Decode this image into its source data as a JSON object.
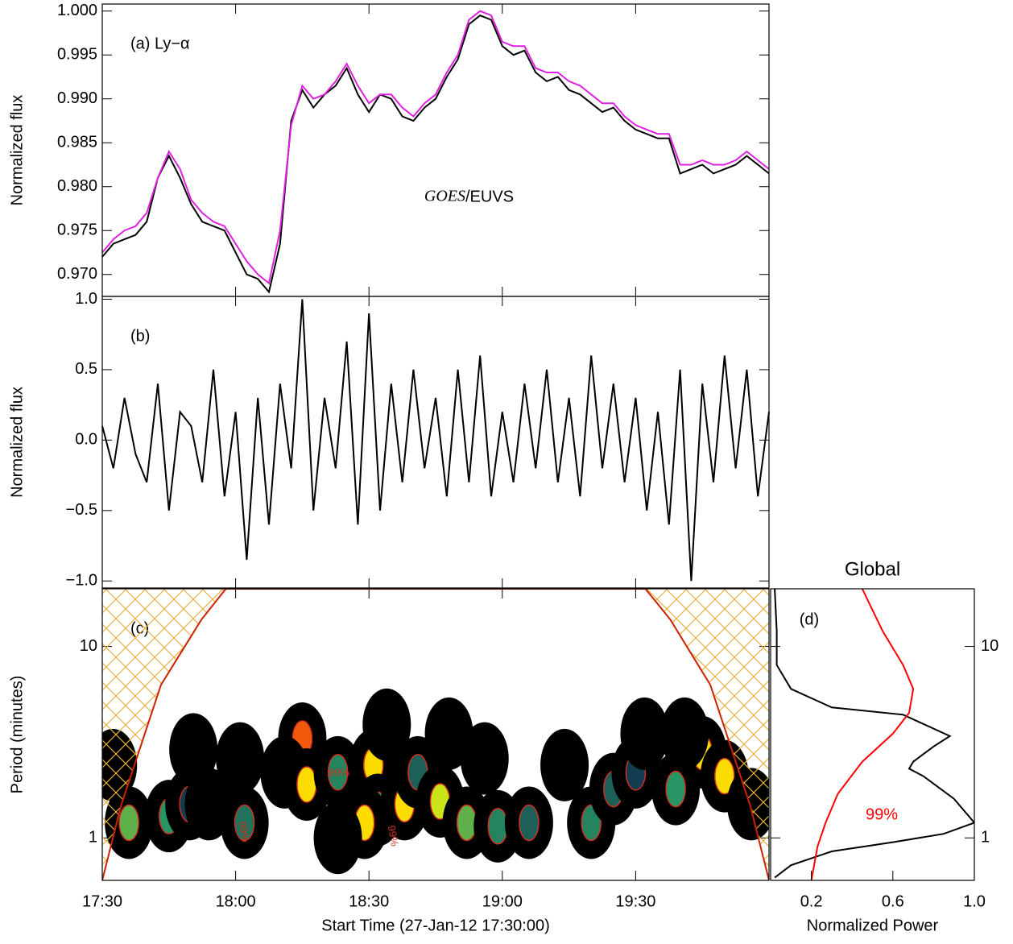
{
  "chart_data": [
    {
      "type": "line",
      "panel_label": "(a) Ly−α",
      "annotation_italic": "GOES",
      "annotation": "/EUVS",
      "y_label": "Normalized flux",
      "x": [
        0,
        2.5,
        5,
        7.5,
        10,
        12.5,
        15,
        17.5,
        20,
        22.5,
        25,
        27.5,
        30,
        32.5,
        35,
        37.5,
        40,
        42.5,
        45,
        47.5,
        50,
        52.5,
        55,
        57.5,
        60,
        62.5,
        65,
        67.5,
        70,
        72.5,
        75,
        77.5,
        80,
        82.5,
        85,
        87.5,
        90,
        92.5,
        95,
        97.5,
        100,
        102.5,
        105,
        107.5,
        110,
        112.5,
        115,
        117.5,
        120,
        122.5,
        125,
        127.5,
        130,
        132.5,
        135,
        137.5,
        140,
        142.5,
        145,
        147.5,
        150
      ],
      "xlim": [
        0,
        150
      ],
      "ylim": [
        0.9675,
        1.0008
      ],
      "yticks": [
        {
          "value": 0.97,
          "label": "0.970"
        },
        {
          "value": 0.975,
          "label": "0.975"
        },
        {
          "value": 0.98,
          "label": "0.980"
        },
        {
          "value": 0.985,
          "label": "0.985"
        },
        {
          "value": 0.99,
          "label": "0.990"
        },
        {
          "value": 0.995,
          "label": "0.995"
        },
        {
          "value": 1.0,
          "label": "1.000"
        }
      ],
      "series": [
        {
          "color": "#000000",
          "values": [
            0.972,
            0.9735,
            0.974,
            0.9745,
            0.976,
            0.981,
            0.9835,
            0.981,
            0.978,
            0.976,
            0.9755,
            0.975,
            0.9725,
            0.97,
            0.9695,
            0.968,
            0.9735,
            0.9875,
            0.991,
            0.989,
            0.9905,
            0.9915,
            0.9935,
            0.9905,
            0.9885,
            0.9905,
            0.99,
            0.988,
            0.9875,
            0.989,
            0.99,
            0.9925,
            0.9945,
            0.9985,
            0.9995,
            0.999,
            0.996,
            0.995,
            0.9955,
            0.993,
            0.992,
            0.9925,
            0.991,
            0.9905,
            0.9895,
            0.9885,
            0.989,
            0.9875,
            0.9865,
            0.986,
            0.9855,
            0.9855,
            0.9815,
            0.982,
            0.9825,
            0.9815,
            0.982,
            0.9825,
            0.9835,
            0.9825,
            0.9815
          ]
        },
        {
          "color": "#e020e0",
          "values": [
            0.9725,
            0.974,
            0.975,
            0.9755,
            0.977,
            0.981,
            0.984,
            0.982,
            0.9785,
            0.977,
            0.976,
            0.9755,
            0.9735,
            0.9715,
            0.97,
            0.969,
            0.975,
            0.987,
            0.9915,
            0.99,
            0.9905,
            0.992,
            0.994,
            0.9915,
            0.9895,
            0.9905,
            0.9905,
            0.989,
            0.988,
            0.9895,
            0.9905,
            0.993,
            0.995,
            0.999,
            1.0,
            0.9995,
            0.9965,
            0.996,
            0.996,
            0.9935,
            0.993,
            0.993,
            0.992,
            0.9915,
            0.9905,
            0.9895,
            0.9895,
            0.988,
            0.987,
            0.9865,
            0.986,
            0.986,
            0.9825,
            0.9825,
            0.983,
            0.9825,
            0.9825,
            0.983,
            0.984,
            0.983,
            0.982
          ]
        }
      ]
    },
    {
      "type": "line",
      "panel_label": "(b)",
      "y_label": "Normalized flux",
      "x": [
        0,
        2.5,
        5,
        7.5,
        10,
        12.5,
        15,
        17.5,
        20,
        22.5,
        25,
        27.5,
        30,
        32.5,
        35,
        37.5,
        40,
        42.5,
        45,
        47.5,
        50,
        52.5,
        55,
        57.5,
        60,
        62.5,
        65,
        67.5,
        70,
        72.5,
        75,
        77.5,
        80,
        82.5,
        85,
        87.5,
        90,
        92.5,
        95,
        97.5,
        100,
        102.5,
        105,
        107.5,
        110,
        112.5,
        115,
        117.5,
        120,
        122.5,
        125,
        127.5,
        130,
        132.5,
        135,
        137.5,
        140,
        142.5,
        145,
        147.5,
        150
      ],
      "xlim": [
        0,
        150
      ],
      "ylim": [
        -1.05,
        1.02
      ],
      "yticks": [
        {
          "value": -1.0,
          "label": "−1.0"
        },
        {
          "value": -0.5,
          "label": "−0.5"
        },
        {
          "value": 0,
          "label": "0.0"
        },
        {
          "value": 0.5,
          "label": "0.5"
        },
        {
          "value": 1.0,
          "label": "1.0"
        }
      ],
      "series": [
        {
          "color": "#000000",
          "values": [
            0.1,
            -0.2,
            0.3,
            -0.1,
            -0.3,
            0.4,
            -0.5,
            0.2,
            0.1,
            -0.3,
            0.5,
            -0.4,
            0.2,
            -0.85,
            0.3,
            -0.6,
            0.4,
            -0.2,
            1.0,
            -0.5,
            0.3,
            -0.2,
            0.7,
            -0.6,
            0.9,
            -0.5,
            0.4,
            -0.3,
            0.5,
            -0.2,
            0.3,
            -0.4,
            0.5,
            -0.3,
            0.6,
            -0.4,
            0.2,
            -0.3,
            0.4,
            -0.2,
            0.5,
            -0.3,
            0.3,
            -0.4,
            0.6,
            -0.2,
            0.4,
            -0.3,
            0.3,
            -0.5,
            0.2,
            -0.6,
            0.5,
            -1.0,
            0.4,
            -0.3,
            0.6,
            -0.2,
            0.5,
            -0.4,
            0.2
          ]
        }
      ]
    },
    {
      "type": "wavelet",
      "panel_label": "(c)",
      "y_label": "Period (minutes)",
      "x_label": "Start Time (27-Jan-12 17:30:00)",
      "contour_label": "99%",
      "xlim": [
        0,
        150
      ],
      "ylim": [
        0.6,
        20
      ],
      "log_y": true,
      "yticks": [
        1,
        10
      ],
      "xticks": [
        {
          "value": 0,
          "label": "17:30"
        },
        {
          "value": 30,
          "label": "18:00"
        },
        {
          "value": 60,
          "label": "18:30"
        },
        {
          "value": 90,
          "label": "19:00"
        },
        {
          "value": 120,
          "label": "19:30"
        }
      ],
      "x": [
        6,
        2.4,
        15,
        19.6,
        20.5,
        32,
        31,
        45,
        41,
        46,
        53,
        61,
        62,
        68,
        59,
        71,
        76,
        82,
        89,
        86,
        96,
        104,
        110,
        115,
        120,
        129,
        135,
        140,
        131,
        122,
        146,
        78,
        64,
        24,
        53
      ],
      "period": [
        1.2,
        2.4,
        1.3,
        1.5,
        2.9,
        1.2,
        2.6,
        3.3,
        2.2,
        1.9,
        2.2,
        2.4,
        1.4,
        1.5,
        1.2,
        2.2,
        1.55,
        1.2,
        1.15,
        2.6,
        1.2,
        2.4,
        1.2,
        1.8,
        2.2,
        1.8,
        2.8,
        2.1,
        3.5,
        3.5,
        1.5,
        3.5,
        3.9,
        1.5,
        1.0
      ],
      "power": [
        0.5,
        0.1,
        0.45,
        0.2,
        0.1,
        0.35,
        0.1,
        0.9,
        0.1,
        0.7,
        0.4,
        0.7,
        0.45,
        0.7,
        0.7,
        0.3,
        0.6,
        0.5,
        0.4,
        0.1,
        0.3,
        0.1,
        0.4,
        0.3,
        0.2,
        0.45,
        0.7,
        0.7,
        0.1,
        0.1,
        0.1,
        0.1,
        0.1,
        0.1,
        0.1
      ],
      "coi": {
        "x": [
          0,
          4.2,
          13.2,
          22.3,
          27.8,
          122.2,
          127.8,
          136.8,
          145.8,
          150
        ],
        "period": [
          0.6,
          1.47,
          6.3,
          13.8,
          20,
          20,
          13.8,
          6.3,
          1.47,
          0.6
        ]
      }
    },
    {
      "type": "global",
      "title": "Global",
      "panel_label": "(d)",
      "x_label": "Normalized Power",
      "xlim": [
        0,
        1.0
      ],
      "ylim": [
        0.6,
        20
      ],
      "log_y": true,
      "yticks": [
        1,
        10
      ],
      "xticks": [
        0.2,
        0.6,
        {
          "value": 1.0,
          "label": "1.0"
        }
      ],
      "series": [
        {
          "color": "#000000",
          "power": [
            0.02,
            0.03,
            0.03,
            0.1,
            0.3,
            0.65,
            0.88,
            0.8,
            0.7,
            0.68,
            0.75,
            0.9,
            1.0,
            0.85,
            0.6,
            0.3,
            0.1,
            0.02
          ],
          "period": [
            20,
            12,
            8,
            6,
            4.8,
            4.4,
            3.4,
            3.0,
            2.5,
            2.3,
            2.1,
            1.6,
            1.2,
            1.05,
            0.95,
            0.85,
            0.72,
            0.62
          ]
        },
        {
          "color": "#ff0000",
          "label": "99%",
          "power": [
            0.45,
            0.55,
            0.65,
            0.7,
            0.68,
            0.6,
            0.45,
            0.33,
            0.27,
            0.23,
            0.2
          ],
          "period": [
            20,
            12,
            8,
            6,
            4.5,
            3.5,
            2.5,
            1.7,
            1.2,
            0.9,
            0.6
          ]
        }
      ]
    }
  ]
}
